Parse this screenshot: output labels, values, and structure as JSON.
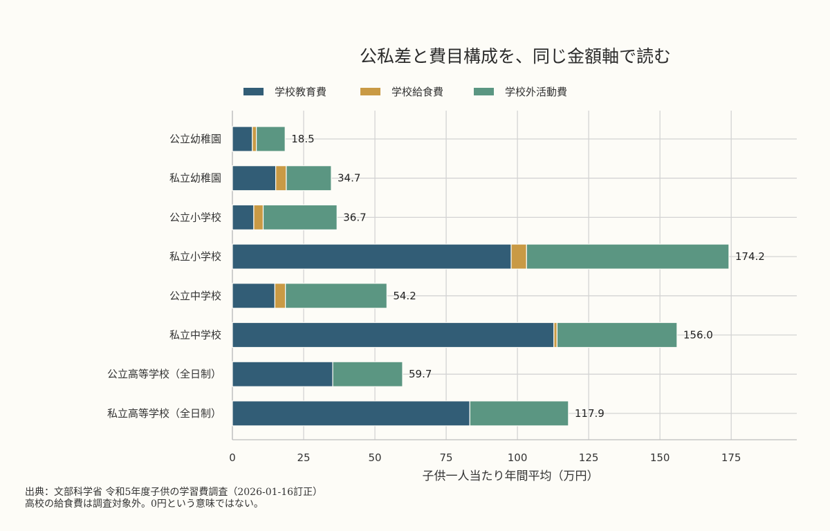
{
  "chart_data": {
    "type": "bar",
    "orientation": "horizontal",
    "stacked": true,
    "title": "公私差と費目構成を、同じ金額軸で読む",
    "xlabel": "子供一人当たり年間平均（万円）",
    "ylabel": "",
    "xlim": [
      0,
      198
    ],
    "xticks": [
      0,
      25,
      50,
      75,
      100,
      125,
      150,
      175
    ],
    "grid": true,
    "legend_position": "top",
    "categories": [
      "公立幼稚園",
      "私立幼稚園",
      "公立小学校",
      "私立小学校",
      "公立中学校",
      "私立中学校",
      "公立高等学校（全日制）",
      "私立高等学校（全日制）"
    ],
    "series": [
      {
        "name": "学校教育費",
        "color": "#325d76",
        "values": [
          7.0,
          15.2,
          7.5,
          97.8,
          14.9,
          112.8,
          35.2,
          83.3
        ]
      },
      {
        "name": "学校給食費",
        "color": "#c99a45",
        "values": [
          1.4,
          3.7,
          3.3,
          5.4,
          3.7,
          1.1,
          0,
          0
        ]
      },
      {
        "name": "学校外活動費",
        "color": "#5b9682",
        "values": [
          10.1,
          15.8,
          25.9,
          71.0,
          35.6,
          42.1,
          24.5,
          34.6
        ]
      }
    ],
    "totals": [
      "18.5",
      "34.7",
      "36.7",
      "174.2",
      "54.2",
      "156.0",
      "59.7",
      "117.9"
    ]
  },
  "notes": {
    "source_line": "出典：文部科学省 令和5年度子供の学習費調査（2026-01-16訂正）",
    "note_line": "高校の給食費は調査対象外。0円という意味ではない。"
  }
}
